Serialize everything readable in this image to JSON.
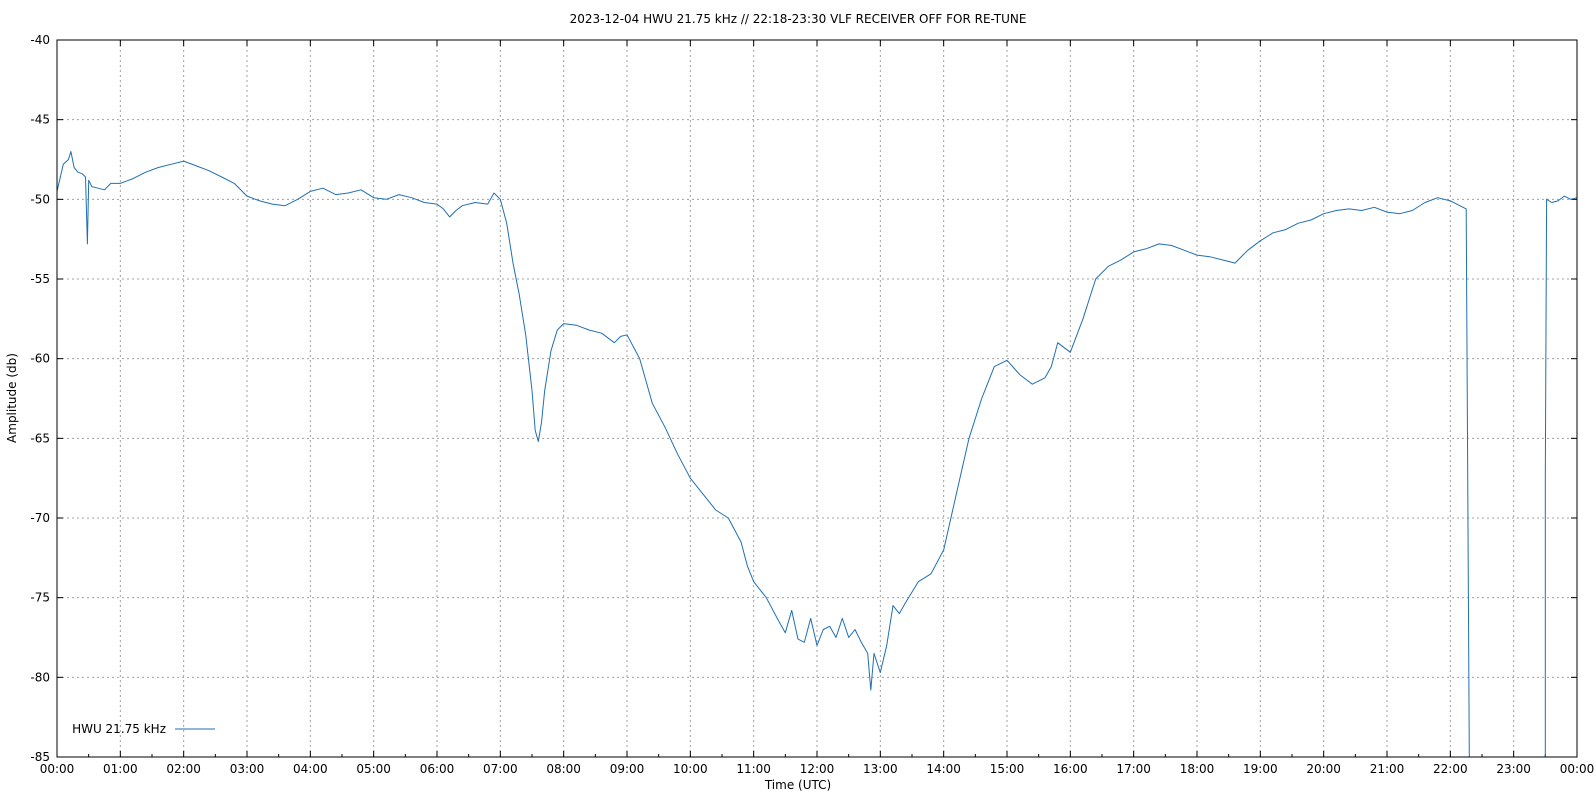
{
  "chart_data": {
    "type": "line",
    "title": "2023-12-04 HWU 21.75 kHz // 22:18-23:30 VLF RECEIVER OFF FOR RE-TUNE",
    "xlabel": "Time (UTC)",
    "ylabel": "Amplitude (db)",
    "x_unit": "hours UTC",
    "xlim": [
      0,
      24
    ],
    "ylim": [
      -85,
      -40
    ],
    "x_tick_labels": [
      "00:00",
      "01:00",
      "02:00",
      "03:00",
      "04:00",
      "05:00",
      "06:00",
      "07:00",
      "08:00",
      "09:00",
      "10:00",
      "11:00",
      "12:00",
      "13:00",
      "14:00",
      "15:00",
      "16:00",
      "17:00",
      "18:00",
      "19:00",
      "20:00",
      "21:00",
      "22:00",
      "23:00",
      "00:00"
    ],
    "y_ticks": [
      -40,
      -45,
      -50,
      -55,
      -60,
      -65,
      -70,
      -75,
      -80,
      -85
    ],
    "grid": true,
    "legend": "bottom-left",
    "series": [
      {
        "name": "HWU 21.75 kHz",
        "color": "#1f6fb2",
        "segments": [
          [
            [
              0.0,
              -49.5
            ],
            [
              0.1,
              -47.8
            ],
            [
              0.18,
              -47.5
            ],
            [
              0.22,
              -47.0
            ],
            [
              0.27,
              -48.0
            ],
            [
              0.33,
              -48.3
            ],
            [
              0.4,
              -48.4
            ],
            [
              0.45,
              -48.6
            ],
            [
              0.48,
              -52.8
            ],
            [
              0.5,
              -48.8
            ],
            [
              0.55,
              -49.2
            ],
            [
              0.65,
              -49.3
            ],
            [
              0.75,
              -49.4
            ],
            [
              0.85,
              -49.0
            ],
            [
              1.0,
              -49.0
            ],
            [
              1.2,
              -48.7
            ],
            [
              1.4,
              -48.3
            ],
            [
              1.6,
              -48.0
            ],
            [
              1.8,
              -47.8
            ],
            [
              2.0,
              -47.6
            ],
            [
              2.2,
              -47.9
            ],
            [
              2.4,
              -48.2
            ],
            [
              2.6,
              -48.6
            ],
            [
              2.8,
              -49.0
            ],
            [
              3.0,
              -49.8
            ],
            [
              3.2,
              -50.1
            ],
            [
              3.4,
              -50.3
            ],
            [
              3.6,
              -50.4
            ],
            [
              3.8,
              -50.0
            ],
            [
              4.0,
              -49.5
            ],
            [
              4.2,
              -49.3
            ],
            [
              4.4,
              -49.7
            ],
            [
              4.6,
              -49.6
            ],
            [
              4.8,
              -49.4
            ],
            [
              5.0,
              -49.9
            ],
            [
              5.2,
              -50.0
            ],
            [
              5.4,
              -49.7
            ],
            [
              5.6,
              -49.9
            ],
            [
              5.8,
              -50.2
            ],
            [
              6.0,
              -50.3
            ],
            [
              6.1,
              -50.6
            ],
            [
              6.2,
              -51.1
            ],
            [
              6.3,
              -50.7
            ],
            [
              6.4,
              -50.4
            ],
            [
              6.6,
              -50.2
            ],
            [
              6.8,
              -50.3
            ],
            [
              6.9,
              -49.6
            ],
            [
              7.0,
              -50.0
            ],
            [
              7.1,
              -51.5
            ],
            [
              7.2,
              -54.0
            ],
            [
              7.3,
              -56.0
            ],
            [
              7.4,
              -58.5
            ],
            [
              7.5,
              -62.0
            ],
            [
              7.55,
              -64.5
            ],
            [
              7.6,
              -65.2
            ],
            [
              7.65,
              -64.0
            ],
            [
              7.7,
              -62.0
            ],
            [
              7.8,
              -59.5
            ],
            [
              7.9,
              -58.2
            ],
            [
              8.0,
              -57.8
            ],
            [
              8.2,
              -57.9
            ],
            [
              8.4,
              -58.2
            ],
            [
              8.6,
              -58.4
            ],
            [
              8.8,
              -59.0
            ],
            [
              8.9,
              -58.6
            ],
            [
              9.0,
              -58.5
            ],
            [
              9.2,
              -60.0
            ],
            [
              9.4,
              -62.8
            ],
            [
              9.6,
              -64.3
            ],
            [
              9.8,
              -66.0
            ],
            [
              10.0,
              -67.5
            ],
            [
              10.2,
              -68.5
            ],
            [
              10.4,
              -69.5
            ],
            [
              10.6,
              -70.0
            ],
            [
              10.8,
              -71.5
            ],
            [
              10.9,
              -73.0
            ],
            [
              11.0,
              -74.0
            ],
            [
              11.2,
              -75.0
            ],
            [
              11.4,
              -76.5
            ],
            [
              11.5,
              -77.2
            ],
            [
              11.6,
              -75.8
            ],
            [
              11.7,
              -77.6
            ],
            [
              11.8,
              -77.8
            ],
            [
              11.9,
              -76.3
            ],
            [
              12.0,
              -78.0
            ],
            [
              12.1,
              -77.0
            ],
            [
              12.2,
              -76.8
            ],
            [
              12.3,
              -77.5
            ],
            [
              12.4,
              -76.3
            ],
            [
              12.5,
              -77.5
            ],
            [
              12.6,
              -77.0
            ],
            [
              12.7,
              -77.8
            ],
            [
              12.8,
              -78.5
            ],
            [
              12.85,
              -80.8
            ],
            [
              12.9,
              -78.5
            ],
            [
              13.0,
              -79.7
            ],
            [
              13.1,
              -78.0
            ],
            [
              13.2,
              -75.5
            ],
            [
              13.3,
              -76.0
            ],
            [
              13.4,
              -75.3
            ],
            [
              13.6,
              -74.0
            ],
            [
              13.8,
              -73.5
            ],
            [
              14.0,
              -72.0
            ],
            [
              14.2,
              -68.5
            ],
            [
              14.4,
              -65.0
            ],
            [
              14.6,
              -62.5
            ],
            [
              14.8,
              -60.5
            ],
            [
              15.0,
              -60.1
            ],
            [
              15.2,
              -61.0
            ],
            [
              15.4,
              -61.6
            ],
            [
              15.6,
              -61.2
            ],
            [
              15.7,
              -60.5
            ],
            [
              15.8,
              -59.0
            ],
            [
              16.0,
              -59.6
            ],
            [
              16.2,
              -57.5
            ],
            [
              16.4,
              -55.0
            ],
            [
              16.6,
              -54.2
            ],
            [
              16.8,
              -53.8
            ],
            [
              17.0,
              -53.3
            ],
            [
              17.2,
              -53.1
            ],
            [
              17.4,
              -52.8
            ],
            [
              17.6,
              -52.9
            ],
            [
              17.8,
              -53.2
            ],
            [
              18.0,
              -53.5
            ],
            [
              18.2,
              -53.6
            ],
            [
              18.4,
              -53.8
            ],
            [
              18.6,
              -54.0
            ],
            [
              18.8,
              -53.2
            ],
            [
              19.0,
              -52.6
            ],
            [
              19.2,
              -52.1
            ],
            [
              19.4,
              -51.9
            ],
            [
              19.6,
              -51.5
            ],
            [
              19.8,
              -51.3
            ],
            [
              20.0,
              -50.9
            ],
            [
              20.2,
              -50.7
            ],
            [
              20.4,
              -50.6
            ],
            [
              20.6,
              -50.7
            ],
            [
              20.8,
              -50.5
            ],
            [
              21.0,
              -50.8
            ],
            [
              21.2,
              -50.9
            ],
            [
              21.4,
              -50.7
            ],
            [
              21.6,
              -50.2
            ],
            [
              21.8,
              -49.9
            ],
            [
              22.0,
              -50.1
            ],
            [
              22.1,
              -50.3
            ],
            [
              22.2,
              -50.5
            ],
            [
              22.25,
              -50.6
            ],
            [
              22.3,
              -85.0
            ]
          ],
          [
            [
              23.5,
              -85.0
            ],
            [
              23.5,
              -67.5
            ],
            [
              23.52,
              -50.0
            ],
            [
              23.6,
              -50.2
            ],
            [
              23.7,
              -50.1
            ],
            [
              23.8,
              -49.8
            ],
            [
              23.9,
              -50.0
            ],
            [
              24.0,
              -49.9
            ]
          ]
        ]
      }
    ]
  }
}
